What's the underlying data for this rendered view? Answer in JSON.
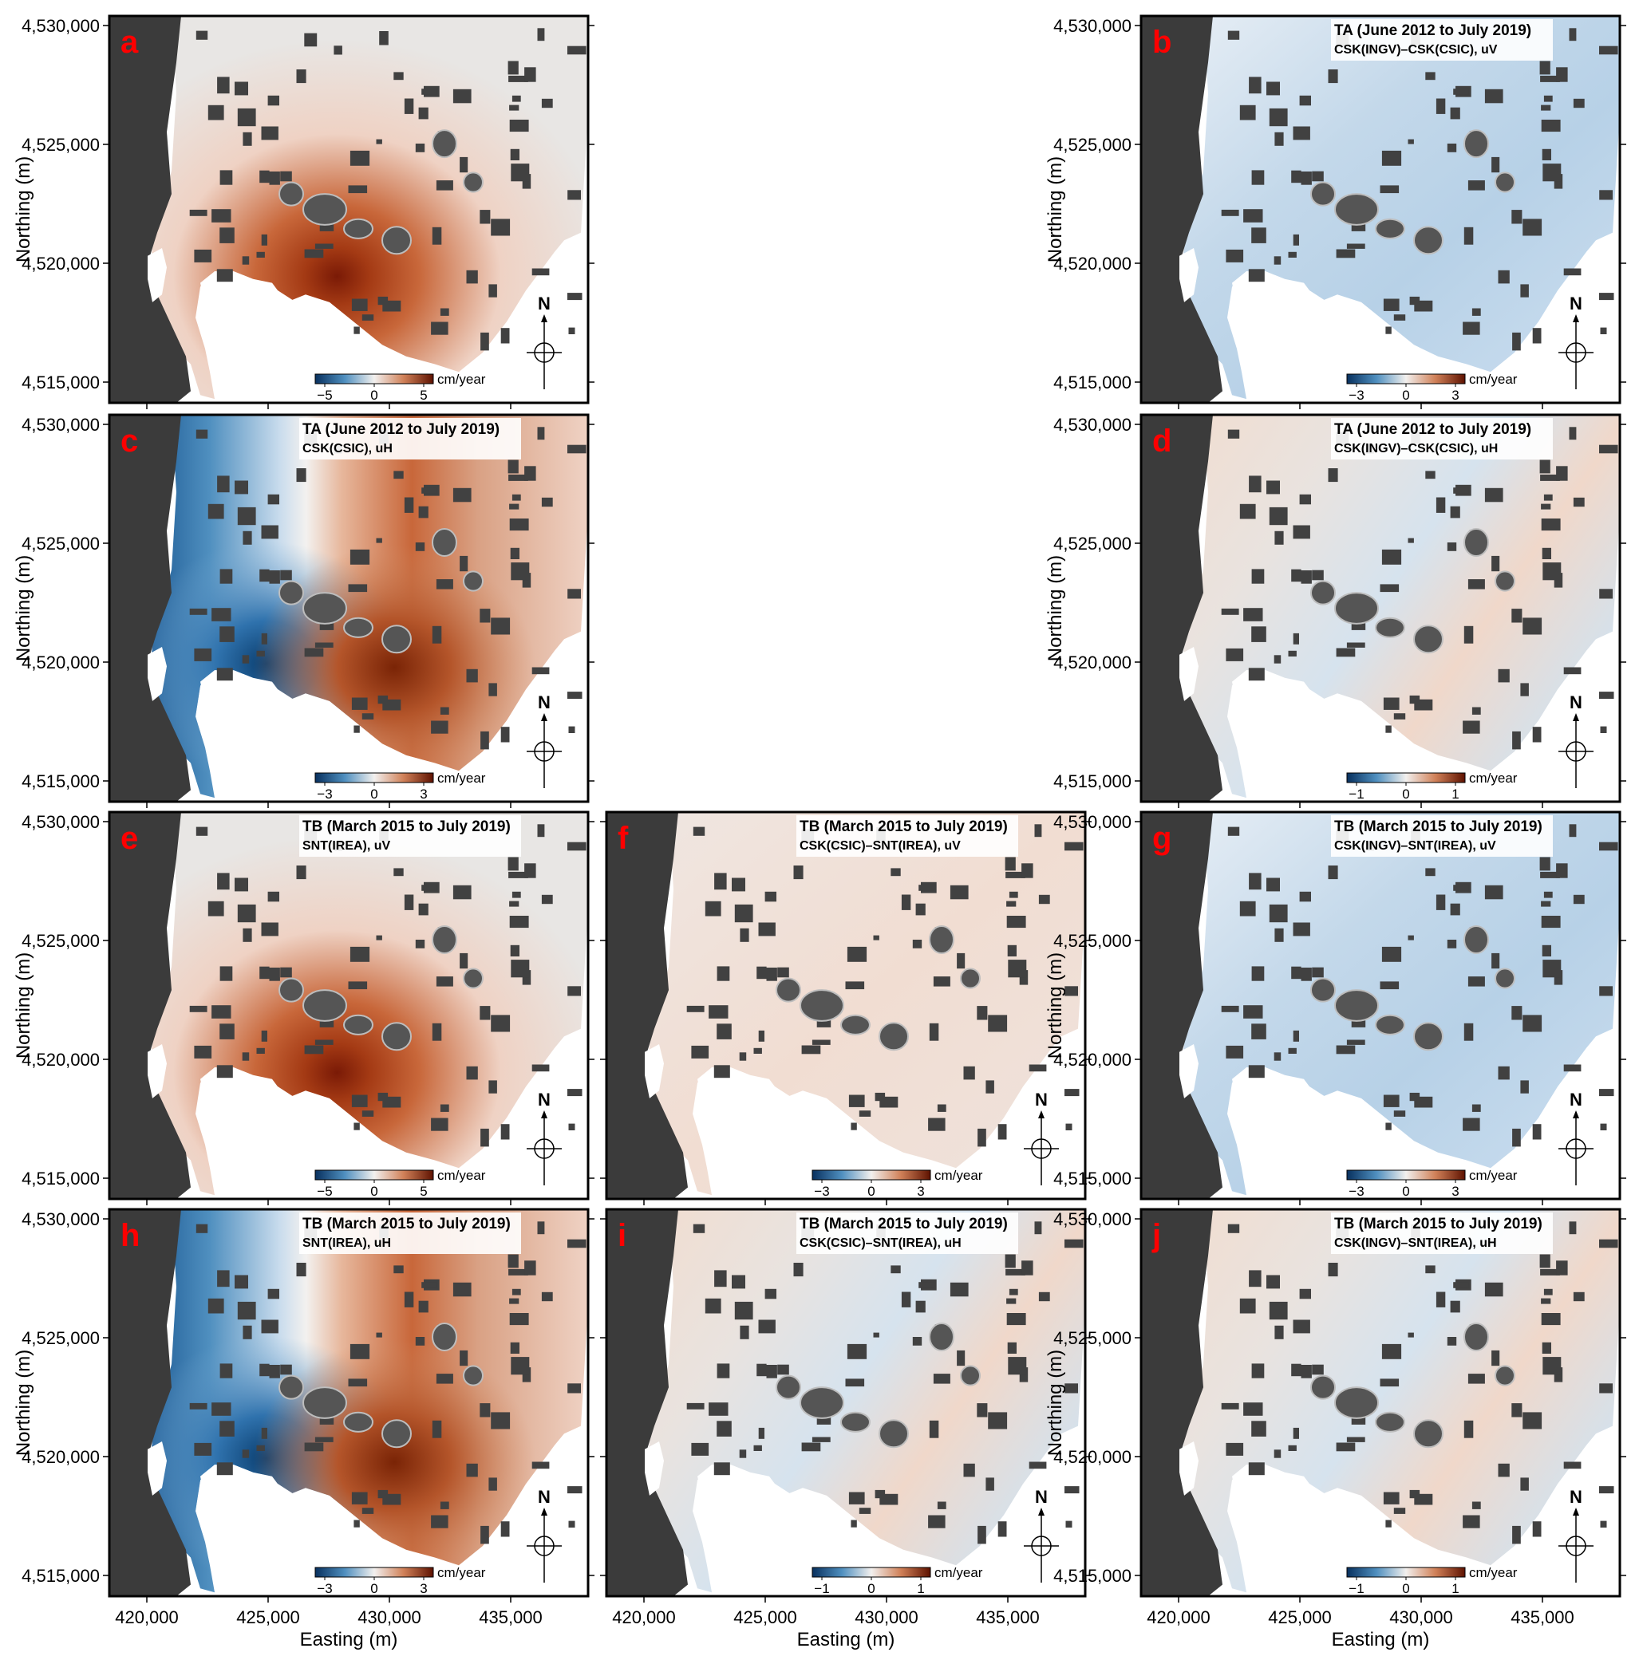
{
  "figure": {
    "y_axis_title": "Northing (m)",
    "x_axis_title": "Easting (m)",
    "northing_ticks": [
      "4,530,000",
      "4,525,000",
      "4,520,000",
      "4,515,000"
    ],
    "easting_ticks": [
      "420,000",
      "425,000",
      "430,000",
      "435,000"
    ],
    "north_label": "N",
    "unit_label": "cm/year"
  },
  "panels": [
    {
      "letter": "a",
      "title1": "",
      "title2": "",
      "pattern": "uv_strong",
      "scale": [
        "−5",
        "0",
        "5"
      ]
    },
    {
      "letter": "b",
      "title1": "TA (June 2012 to July 2019)",
      "title2": "CSK(INGV)–CSK(CSIC), uV",
      "pattern": "diff_blue",
      "scale": [
        "−3",
        "0",
        "3"
      ]
    },
    {
      "letter": "c",
      "title1": "TA (June 2012 to July 2019)",
      "title2": "CSK(CSIC), uH",
      "pattern": "uh",
      "scale": [
        "−3",
        "0",
        "3"
      ]
    },
    {
      "letter": "d",
      "title1": "TA (June 2012 to July 2019)",
      "title2": "CSK(INGV)–CSK(CSIC), uH",
      "pattern": "diff_mixed",
      "scale": [
        "−1",
        "0",
        "1"
      ]
    },
    {
      "letter": "e",
      "title1": "TB (March 2015 to July 2019)",
      "title2": "SNT(IREA), uV",
      "pattern": "uv_strong",
      "scale": [
        "−5",
        "0",
        "5"
      ]
    },
    {
      "letter": "f",
      "title1": "TB (March 2015 to July 2019)",
      "title2": "CSK(CSIC)–SNT(IREA), uV",
      "pattern": "diff_red_light",
      "scale": [
        "−3",
        "0",
        "3"
      ]
    },
    {
      "letter": "g",
      "title1": "TB (March 2015 to July 2019)",
      "title2": "CSK(INGV)–SNT(IREA), uV",
      "pattern": "diff_blue",
      "scale": [
        "−3",
        "0",
        "3"
      ]
    },
    {
      "letter": "h",
      "title1": "TB (March 2015 to July 2019)",
      "title2": "SNT(IREA), uH",
      "pattern": "uh",
      "scale": [
        "−3",
        "0",
        "3"
      ]
    },
    {
      "letter": "i",
      "title1": "TB (March 2015 to July 2019)",
      "title2": "CSK(CSIC)–SNT(IREA), uH",
      "pattern": "diff_mixed",
      "scale": [
        "−1",
        "0",
        "1"
      ]
    },
    {
      "letter": "j",
      "title1": "TB (March 2015 to July 2019)",
      "title2": "CSK(INGV)–SNT(IREA), uH",
      "pattern": "diff_mixed",
      "scale": [
        "−1",
        "0",
        "1"
      ]
    }
  ],
  "colors": {
    "frame": "#000000",
    "relief": "#3b3b3b",
    "sea": "#ffffff",
    "neutral": "#e8e6e4",
    "red_strong": "#7a1a06",
    "red_mid": "#c8673a",
    "red_light": "#efd2c4",
    "blue_strong": "#0a3d6e",
    "blue_mid": "#4f8fbf",
    "blue_light": "#c9dced"
  }
}
